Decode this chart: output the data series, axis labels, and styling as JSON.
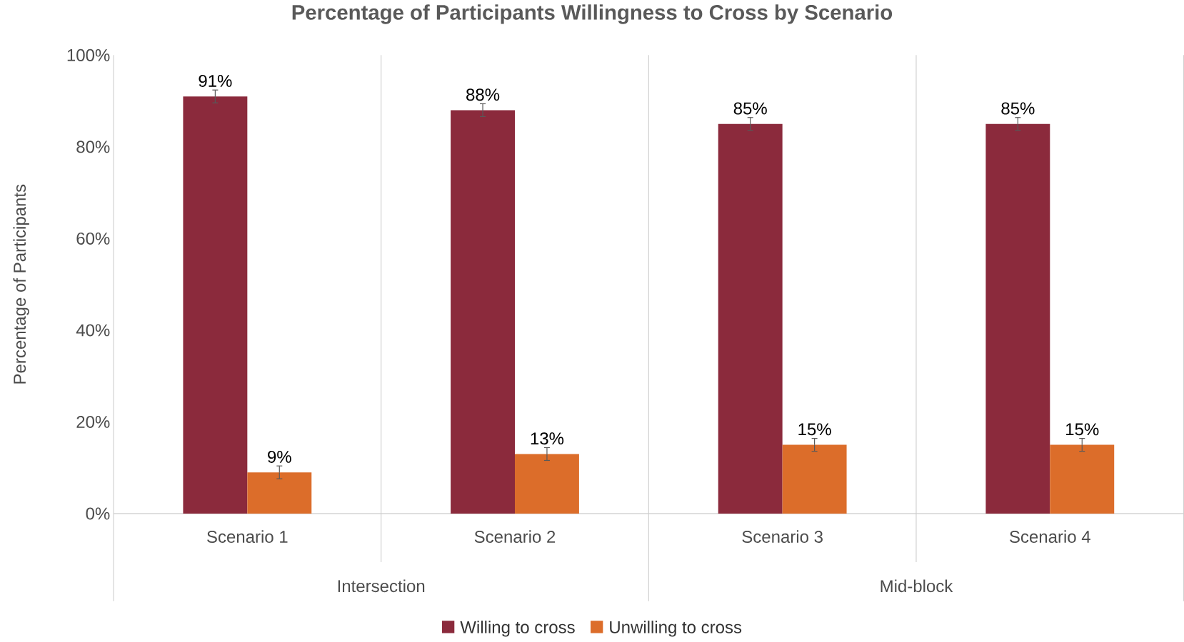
{
  "chart_data": {
    "type": "bar",
    "title": "Percentage of Participants Willingness to Cross by Scenario",
    "ylabel": "Percentage of Participants",
    "categories": [
      "Scenario 1",
      "Scenario 2",
      "Scenario 3",
      "Scenario 4"
    ],
    "series": [
      {
        "name": "Willing to cross",
        "color": "#8b2a3c",
        "values": [
          91,
          88,
          85,
          85
        ],
        "errors": [
          1.4,
          1.4,
          1.4,
          1.4
        ],
        "value_labels": [
          "91%",
          "88%",
          "85%",
          "85%"
        ]
      },
      {
        "name": "Unwilling to cross",
        "color": "#dc6d2a",
        "values": [
          9,
          13,
          15,
          15
        ],
        "errors": [
          1.4,
          1.4,
          1.4,
          1.4
        ],
        "value_labels": [
          "9%",
          "13%",
          "15%",
          "15%"
        ]
      }
    ],
    "ylim": [
      0,
      100
    ],
    "yticks": [
      {
        "value": 0,
        "label": "0%"
      },
      {
        "value": 20,
        "label": "20%"
      },
      {
        "value": 40,
        "label": "40%"
      },
      {
        "value": 60,
        "label": "60%"
      },
      {
        "value": 80,
        "label": "80%"
      },
      {
        "value": 100,
        "label": "100%"
      }
    ],
    "annotations": [
      "Intersection",
      "Mid-block"
    ],
    "grid": "x",
    "legend": "bottom"
  }
}
